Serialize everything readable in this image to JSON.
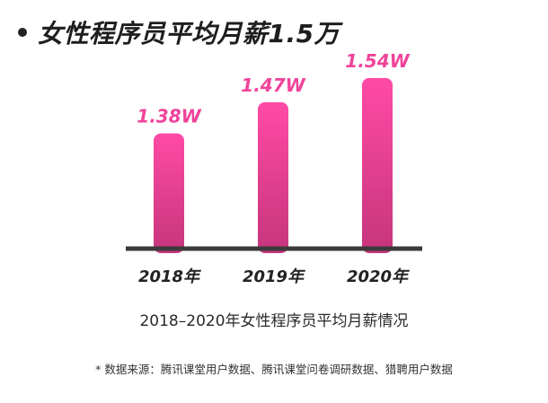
{
  "headline": "女性程序员平均月薪1.5万",
  "colors": {
    "bar_top": "#ff4aa5",
    "bar_bottom": "#c6357c",
    "label": "#f0439a",
    "axis": "#3a3a3a"
  },
  "chart_data": {
    "type": "bar",
    "categories": [
      "2018年",
      "2019年",
      "2020年"
    ],
    "values": [
      1.38,
      1.47,
      1.54
    ],
    "value_labels": [
      "1.38W",
      "1.47W",
      "1.54W"
    ],
    "title": "",
    "xlabel": "",
    "ylabel": "",
    "grid": false,
    "legend": "none"
  },
  "caption": "2018–2020年女性程序员平均月薪情况",
  "source": "* 数据来源：腾讯课堂用户数据、腾讯课堂问卷调研数据、猎聘用户数据"
}
